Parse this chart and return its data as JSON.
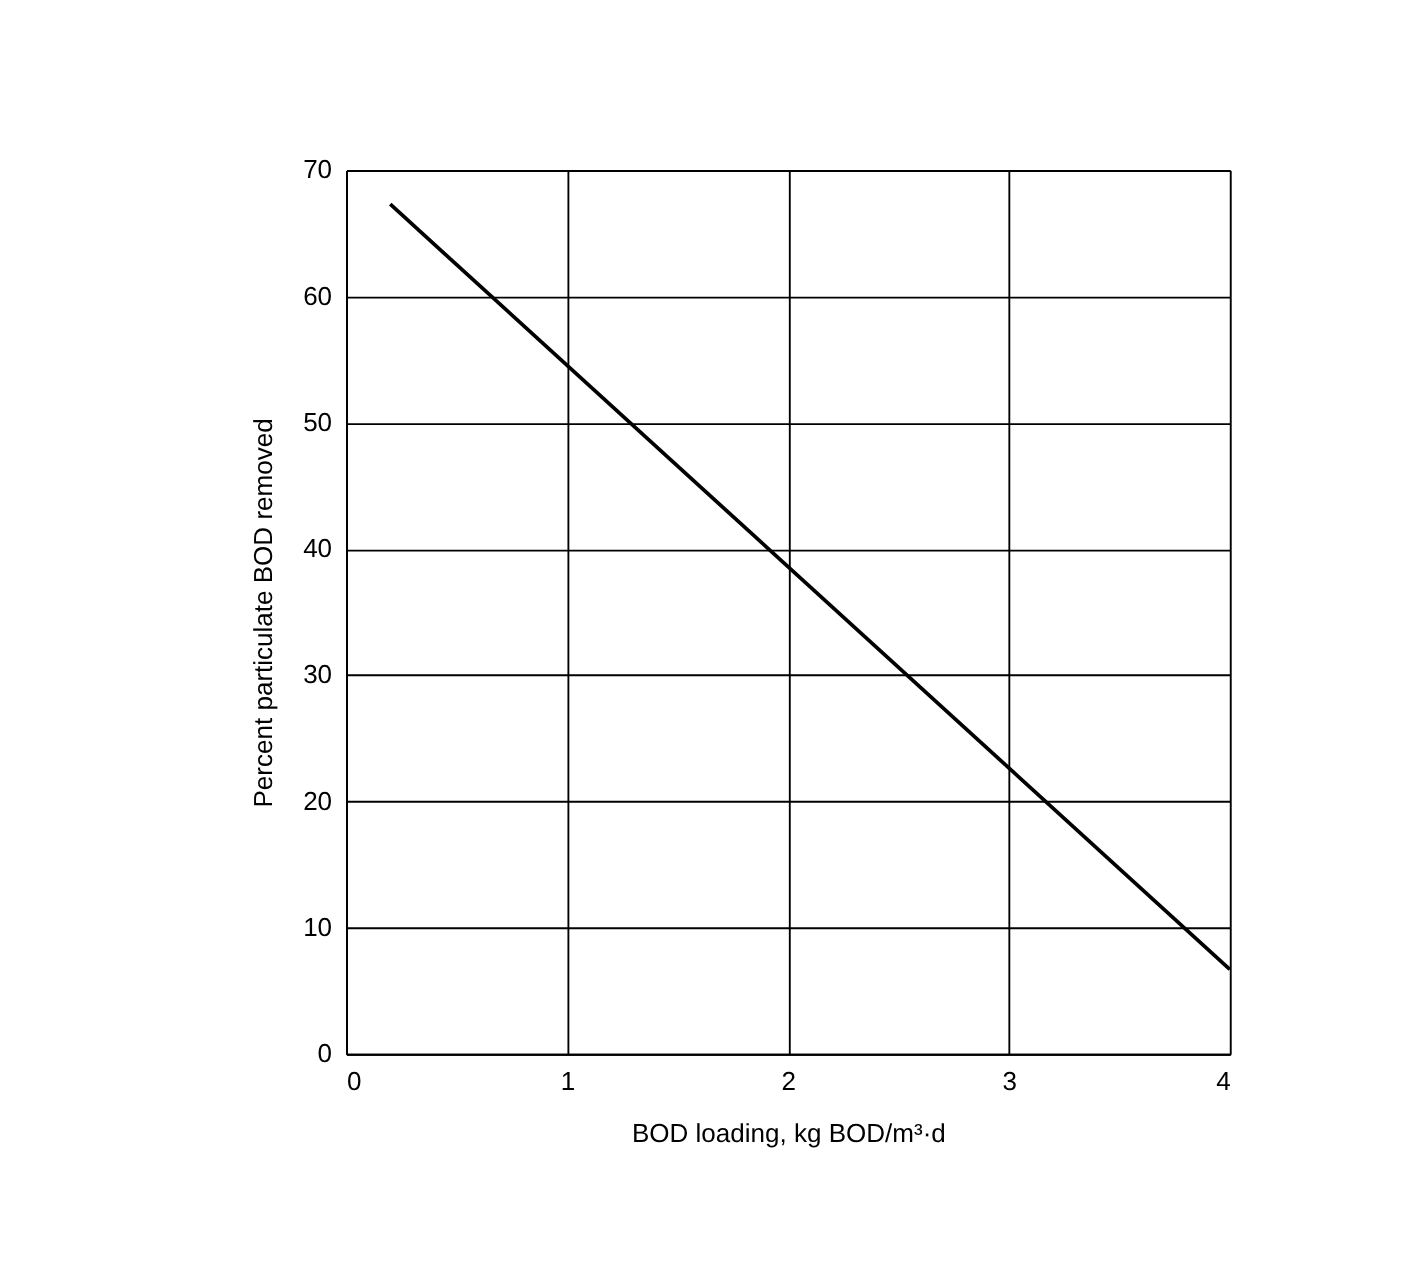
{
  "chart_data": {
    "type": "line",
    "xlabel": "BOD loading, kg BOD/m³·d",
    "ylabel": "Percent particulate BOD removed",
    "series": [
      {
        "color": "#000000",
        "x": [
          0.2,
          4
        ],
        "values": [
          67.3,
          6.7
        ]
      }
    ],
    "xlim": [
      0,
      4
    ],
    "xticks": [
      0,
      1,
      2,
      3,
      4
    ],
    "ylim": [
      0,
      70
    ],
    "yticks": [
      0,
      10,
      20,
      30,
      40,
      50,
      60,
      70
    ],
    "grid": true,
    "marker": "none",
    "line_style": "solid"
  }
}
